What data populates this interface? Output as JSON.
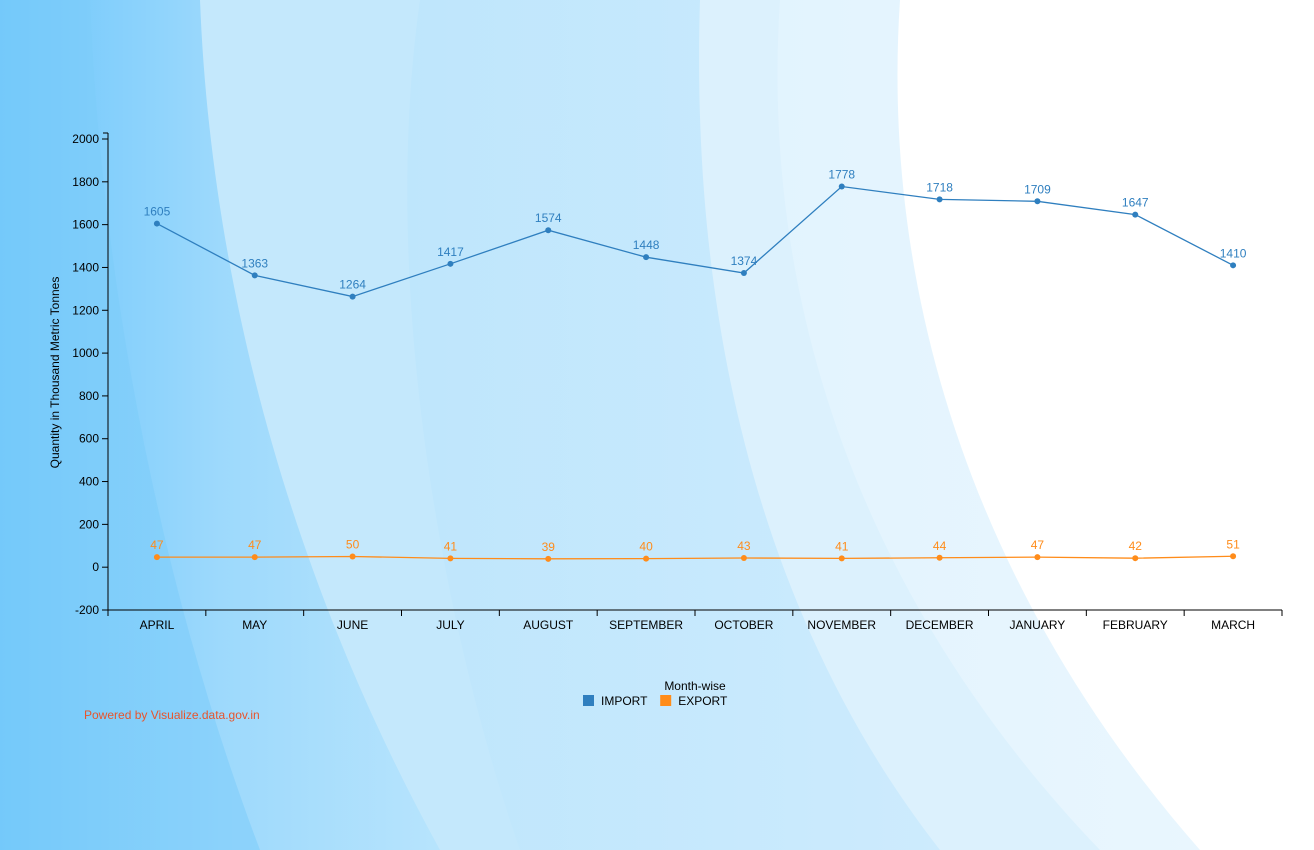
{
  "credit": "Powered by Visualize.data.gov.in",
  "colors": {
    "import": "#2f7fbf",
    "export": "#ff8c1a"
  },
  "chart_data": {
    "type": "line",
    "ylabel": "Quantity in Thousand Metric Tonnes",
    "xlabel": "Month-wise",
    "ylim": [
      -200,
      2000
    ],
    "yticks": [
      -200,
      0,
      200,
      400,
      600,
      800,
      1000,
      1200,
      1400,
      1600,
      1800,
      2000
    ],
    "categories": [
      "APRIL",
      "MAY",
      "JUNE",
      "JULY",
      "AUGUST",
      "SEPTEMBER",
      "OCTOBER",
      "NOVEMBER",
      "DECEMBER",
      "JANUARY",
      "FEBRUARY",
      "MARCH"
    ],
    "series": [
      {
        "name": "IMPORT",
        "color": "#2f7fbf",
        "values": [
          1605,
          1363,
          1264,
          1417,
          1574,
          1448,
          1374,
          1778,
          1718,
          1709,
          1647,
          1410
        ]
      },
      {
        "name": "EXPORT",
        "color": "#ff8c1a",
        "values": [
          47,
          47,
          50,
          41,
          39,
          40,
          43,
          41,
          44,
          47,
          42,
          51
        ]
      }
    ],
    "grid": false,
    "legend_position": "bottom-center"
  }
}
